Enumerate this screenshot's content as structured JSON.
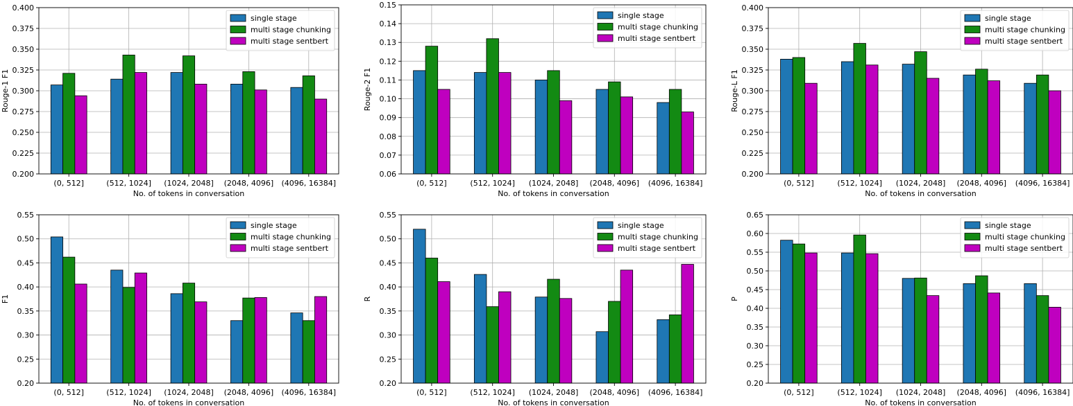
{
  "colors": {
    "single": "#1f77b4",
    "chunking": "#138a13",
    "sentbert": "#bf00bf",
    "grid": "#b0b0b0"
  },
  "chart_data": [
    {
      "type": "bar",
      "ylabel": "Rouge-1 F1",
      "xlabel": "No. of tokens in conversation",
      "ylim": [
        0.2,
        0.4
      ],
      "yticks": [
        0.2,
        0.225,
        0.25,
        0.275,
        0.3,
        0.325,
        0.35,
        0.375,
        0.4
      ],
      "ytick_labels": [
        "0.200",
        "0.225",
        "0.250",
        "0.275",
        "0.300",
        "0.325",
        "0.350",
        "0.375",
        "0.400"
      ],
      "categories": [
        "(0, 512]",
        "(512, 1024]",
        "(1024, 2048]",
        "(2048, 4096]",
        "(4096, 16384]"
      ],
      "legend": "top-right",
      "grid": true,
      "series": [
        {
          "name": "single stage",
          "color_key": "single",
          "values": [
            0.307,
            0.314,
            0.322,
            0.308,
            0.304
          ]
        },
        {
          "name": "multi stage chunking",
          "color_key": "chunking",
          "values": [
            0.321,
            0.343,
            0.342,
            0.323,
            0.318
          ]
        },
        {
          "name": "multi stage sentbert",
          "color_key": "sentbert",
          "values": [
            0.294,
            0.322,
            0.308,
            0.301,
            0.29
          ]
        }
      ]
    },
    {
      "type": "bar",
      "ylabel": "Rouge-2 F1",
      "xlabel": "No. of tokens in conversation",
      "ylim": [
        0.06,
        0.15
      ],
      "yticks": [
        0.06,
        0.07,
        0.08,
        0.09,
        0.1,
        0.11,
        0.12,
        0.13,
        0.14,
        0.15
      ],
      "ytick_labels": [
        "0.06",
        "0.07",
        "0.08",
        "0.09",
        "0.10",
        "0.11",
        "0.12",
        "0.13",
        "0.14",
        "0.15"
      ],
      "categories": [
        "(0, 512]",
        "(512, 1024]",
        "(1024, 2048]",
        "(2048, 4096]",
        "(4096, 16384]"
      ],
      "legend": "top-right",
      "grid": true,
      "series": [
        {
          "name": "single stage",
          "color_key": "single",
          "values": [
            0.115,
            0.114,
            0.11,
            0.105,
            0.098
          ]
        },
        {
          "name": "multi stage chunking",
          "color_key": "chunking",
          "values": [
            0.128,
            0.132,
            0.115,
            0.109,
            0.105
          ]
        },
        {
          "name": "multi stage sentbert",
          "color_key": "sentbert",
          "values": [
            0.105,
            0.114,
            0.099,
            0.101,
            0.093
          ]
        }
      ]
    },
    {
      "type": "bar",
      "ylabel": "Rouge-L F1",
      "xlabel": "No. of tokens in conversation",
      "ylim": [
        0.2,
        0.4
      ],
      "yticks": [
        0.2,
        0.225,
        0.25,
        0.275,
        0.3,
        0.325,
        0.35,
        0.375,
        0.4
      ],
      "ytick_labels": [
        "0.200",
        "0.225",
        "0.250",
        "0.275",
        "0.300",
        "0.325",
        "0.350",
        "0.375",
        "0.400"
      ],
      "categories": [
        "(0, 512]",
        "(512, 1024]",
        "(1024, 2048]",
        "(2048, 4096]",
        "(4096, 16384]"
      ],
      "legend": "top-right",
      "grid": true,
      "series": [
        {
          "name": "single stage",
          "color_key": "single",
          "values": [
            0.338,
            0.335,
            0.332,
            0.319,
            0.309
          ]
        },
        {
          "name": "multi stage chunking",
          "color_key": "chunking",
          "values": [
            0.34,
            0.357,
            0.347,
            0.326,
            0.319
          ]
        },
        {
          "name": "multi stage sentbert",
          "color_key": "sentbert",
          "values": [
            0.309,
            0.331,
            0.315,
            0.312,
            0.3
          ]
        }
      ]
    },
    {
      "type": "bar",
      "ylabel": "F1",
      "xlabel": "No. of tokens in conversation",
      "ylim": [
        0.2,
        0.55
      ],
      "yticks": [
        0.2,
        0.25,
        0.3,
        0.35,
        0.4,
        0.45,
        0.5,
        0.55
      ],
      "ytick_labels": [
        "0.20",
        "0.25",
        "0.30",
        "0.35",
        "0.40",
        "0.45",
        "0.50",
        "0.55"
      ],
      "categories": [
        "(0, 512]",
        "(512, 1024]",
        "(1024, 2048]",
        "(2048, 4096]",
        "(4096, 16384]"
      ],
      "legend": "top-right",
      "grid": true,
      "series": [
        {
          "name": "single stage",
          "color_key": "single",
          "values": [
            0.504,
            0.435,
            0.386,
            0.33,
            0.346
          ]
        },
        {
          "name": "multi stage chunking",
          "color_key": "chunking",
          "values": [
            0.462,
            0.399,
            0.408,
            0.377,
            0.33
          ]
        },
        {
          "name": "multi stage sentbert",
          "color_key": "sentbert",
          "values": [
            0.406,
            0.429,
            0.369,
            0.378,
            0.38
          ]
        }
      ]
    },
    {
      "type": "bar",
      "ylabel": "R",
      "xlabel": "No. of tokens in conversation",
      "ylim": [
        0.2,
        0.55
      ],
      "yticks": [
        0.2,
        0.25,
        0.3,
        0.35,
        0.4,
        0.45,
        0.5,
        0.55
      ],
      "ytick_labels": [
        "0.20",
        "0.25",
        "0.30",
        "0.35",
        "0.40",
        "0.45",
        "0.50",
        "0.55"
      ],
      "categories": [
        "(0, 512]",
        "(512, 1024]",
        "(1024, 2048]",
        "(2048, 4096]",
        "(4096, 16384]"
      ],
      "legend": "top-right",
      "grid": true,
      "series": [
        {
          "name": "single stage",
          "color_key": "single",
          "values": [
            0.52,
            0.426,
            0.379,
            0.307,
            0.332
          ]
        },
        {
          "name": "multi stage chunking",
          "color_key": "chunking",
          "values": [
            0.46,
            0.359,
            0.416,
            0.37,
            0.342
          ]
        },
        {
          "name": "multi stage sentbert",
          "color_key": "sentbert",
          "values": [
            0.411,
            0.39,
            0.376,
            0.435,
            0.447
          ]
        }
      ]
    },
    {
      "type": "bar",
      "ylabel": "P",
      "xlabel": "No. of tokens in conversation",
      "ylim": [
        0.2,
        0.65
      ],
      "yticks": [
        0.2,
        0.25,
        0.3,
        0.35,
        0.4,
        0.45,
        0.5,
        0.55,
        0.6,
        0.65
      ],
      "ytick_labels": [
        "0.20",
        "0.25",
        "0.30",
        "0.35",
        "0.40",
        "0.45",
        "0.50",
        "0.55",
        "0.60",
        "0.65"
      ],
      "categories": [
        "(0, 512]",
        "(512, 1024]",
        "(1024, 2048]",
        "(2048, 4096]",
        "(4096, 16384]"
      ],
      "legend": "top-right",
      "grid": true,
      "series": [
        {
          "name": "single stage",
          "color_key": "single",
          "values": [
            0.582,
            0.548,
            0.48,
            0.466,
            0.466
          ]
        },
        {
          "name": "multi stage chunking",
          "color_key": "chunking",
          "values": [
            0.572,
            0.596,
            0.481,
            0.487,
            0.434
          ]
        },
        {
          "name": "multi stage sentbert",
          "color_key": "sentbert",
          "values": [
            0.548,
            0.546,
            0.434,
            0.441,
            0.403
          ]
        }
      ]
    }
  ]
}
